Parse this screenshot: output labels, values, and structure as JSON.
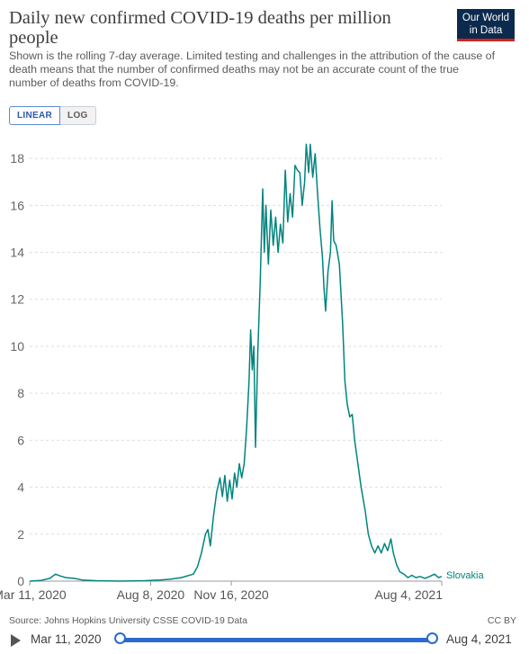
{
  "header": {
    "title": "Daily new confirmed COVID-19 deaths per million people",
    "subtitle": "Shown is the rolling 7-day average. Limited testing and challenges in the attribution of the cause of death means that the number of confirmed deaths may not be an accurate count of the true number of deaths from COVID-19.",
    "logo_line1": "Our World",
    "logo_line2": "in Data"
  },
  "controls": {
    "linear_label": "LINEAR",
    "log_label": "LOG",
    "active_scale": "linear"
  },
  "chart_data": {
    "type": "line",
    "title": "Daily new confirmed COVID-19 deaths per million people",
    "xlabel": "",
    "ylabel": "",
    "ylim": [
      0,
      19
    ],
    "yticks": [
      0,
      2,
      4,
      6,
      8,
      10,
      12,
      14,
      16,
      18
    ],
    "xlim": [
      "2020-03-11",
      "2021-08-04"
    ],
    "xticks": [
      {
        "date": "2020-03-11",
        "label": "Mar 11, 2020"
      },
      {
        "date": "2020-08-08",
        "label": "Aug 8, 2020"
      },
      {
        "date": "2020-11-16",
        "label": "Nov 16, 2020"
      },
      {
        "date": "2021-08-04",
        "label": "Aug 4, 2021"
      }
    ],
    "grid": "horizontal-dashed",
    "line_color": "#00847e",
    "series": [
      {
        "name": "Slovakia",
        "points": [
          [
            "2020-03-11",
            0
          ],
          [
            "2020-03-25",
            0.03
          ],
          [
            "2020-04-05",
            0.12
          ],
          [
            "2020-04-12",
            0.3
          ],
          [
            "2020-04-18",
            0.22
          ],
          [
            "2020-04-25",
            0.15
          ],
          [
            "2020-05-05",
            0.12
          ],
          [
            "2020-05-15",
            0.05
          ],
          [
            "2020-06-01",
            0.02
          ],
          [
            "2020-07-01",
            0
          ],
          [
            "2020-08-01",
            0.02
          ],
          [
            "2020-08-20",
            0.05
          ],
          [
            "2020-09-01",
            0.08
          ],
          [
            "2020-09-15",
            0.15
          ],
          [
            "2020-09-30",
            0.3
          ],
          [
            "2020-10-05",
            0.6
          ],
          [
            "2020-10-10",
            1.2
          ],
          [
            "2020-10-15",
            2
          ],
          [
            "2020-10-18",
            2.2
          ],
          [
            "2020-10-21",
            1.5
          ],
          [
            "2020-10-25",
            2.8
          ],
          [
            "2020-10-29",
            3.8
          ],
          [
            "2020-11-02",
            4.4
          ],
          [
            "2020-11-05",
            3.6
          ],
          [
            "2020-11-08",
            4.5
          ],
          [
            "2020-11-11",
            3.4
          ],
          [
            "2020-11-14",
            4.3
          ],
          [
            "2020-11-17",
            3.5
          ],
          [
            "2020-11-20",
            4.6
          ],
          [
            "2020-11-23",
            4.0
          ],
          [
            "2020-11-26",
            5.0
          ],
          [
            "2020-11-29",
            4.4
          ],
          [
            "2020-12-02",
            5.0
          ],
          [
            "2020-12-05",
            6.5
          ],
          [
            "2020-12-08",
            8.5
          ],
          [
            "2020-12-10",
            10.7
          ],
          [
            "2020-12-12",
            9.0
          ],
          [
            "2020-12-14",
            10.0
          ],
          [
            "2020-12-16",
            5.7
          ],
          [
            "2020-12-19",
            9.8
          ],
          [
            "2020-12-22",
            12.8
          ],
          [
            "2020-12-25",
            16.7
          ],
          [
            "2020-12-27",
            14.0
          ],
          [
            "2020-12-29",
            16.0
          ],
          [
            "2021-01-01",
            13.5
          ],
          [
            "2021-01-04",
            15.8
          ],
          [
            "2021-01-07",
            14.3
          ],
          [
            "2021-01-10",
            15.5
          ],
          [
            "2021-01-13",
            14.0
          ],
          [
            "2021-01-16",
            15.2
          ],
          [
            "2021-01-19",
            14.4
          ],
          [
            "2021-01-22",
            17.5
          ],
          [
            "2021-01-25",
            15.3
          ],
          [
            "2021-01-28",
            16.5
          ],
          [
            "2021-01-31",
            15.5
          ],
          [
            "2021-02-03",
            17.7
          ],
          [
            "2021-02-06",
            17.5
          ],
          [
            "2021-02-09",
            17.4
          ],
          [
            "2021-02-12",
            16.0
          ],
          [
            "2021-02-15",
            17.0
          ],
          [
            "2021-02-17",
            18.6
          ],
          [
            "2021-02-20",
            17.4
          ],
          [
            "2021-02-22",
            18.6
          ],
          [
            "2021-02-25",
            17.2
          ],
          [
            "2021-02-28",
            18.2
          ],
          [
            "2021-03-03",
            16.5
          ],
          [
            "2021-03-06",
            15.0
          ],
          [
            "2021-03-09",
            13.8
          ],
          [
            "2021-03-11",
            12.5
          ],
          [
            "2021-03-13",
            11.5
          ],
          [
            "2021-03-16",
            13.2
          ],
          [
            "2021-03-19",
            14.0
          ],
          [
            "2021-03-21",
            16.2
          ],
          [
            "2021-03-23",
            14.5
          ],
          [
            "2021-03-26",
            14.3
          ],
          [
            "2021-03-30",
            13.5
          ],
          [
            "2021-04-03",
            11.0
          ],
          [
            "2021-04-06",
            8.5
          ],
          [
            "2021-04-09",
            7.5
          ],
          [
            "2021-04-12",
            7.0
          ],
          [
            "2021-04-15",
            7.1
          ],
          [
            "2021-04-18",
            6.0
          ],
          [
            "2021-04-22",
            5.0
          ],
          [
            "2021-04-26",
            4.0
          ],
          [
            "2021-05-01",
            3.0
          ],
          [
            "2021-05-05",
            2.0
          ],
          [
            "2021-05-09",
            1.5
          ],
          [
            "2021-05-13",
            1.2
          ],
          [
            "2021-05-17",
            1.5
          ],
          [
            "2021-05-21",
            1.2
          ],
          [
            "2021-05-25",
            1.6
          ],
          [
            "2021-05-29",
            1.3
          ],
          [
            "2021-06-02",
            1.8
          ],
          [
            "2021-06-05",
            1.2
          ],
          [
            "2021-06-09",
            0.7
          ],
          [
            "2021-06-13",
            0.4
          ],
          [
            "2021-06-18",
            0.3
          ],
          [
            "2021-06-23",
            0.15
          ],
          [
            "2021-06-28",
            0.25
          ],
          [
            "2021-07-03",
            0.15
          ],
          [
            "2021-07-08",
            0.2
          ],
          [
            "2021-07-14",
            0.12
          ],
          [
            "2021-07-20",
            0.2
          ],
          [
            "2021-07-26",
            0.3
          ],
          [
            "2021-07-31",
            0.15
          ],
          [
            "2021-08-04",
            0.2
          ]
        ]
      }
    ]
  },
  "footer": {
    "source": "Source: Johns Hopkins University CSSE COVID-19 Data",
    "license": "CC BY"
  },
  "timeline": {
    "start_label": "Mar 11, 2020",
    "end_label": "Aug 4, 2021"
  }
}
